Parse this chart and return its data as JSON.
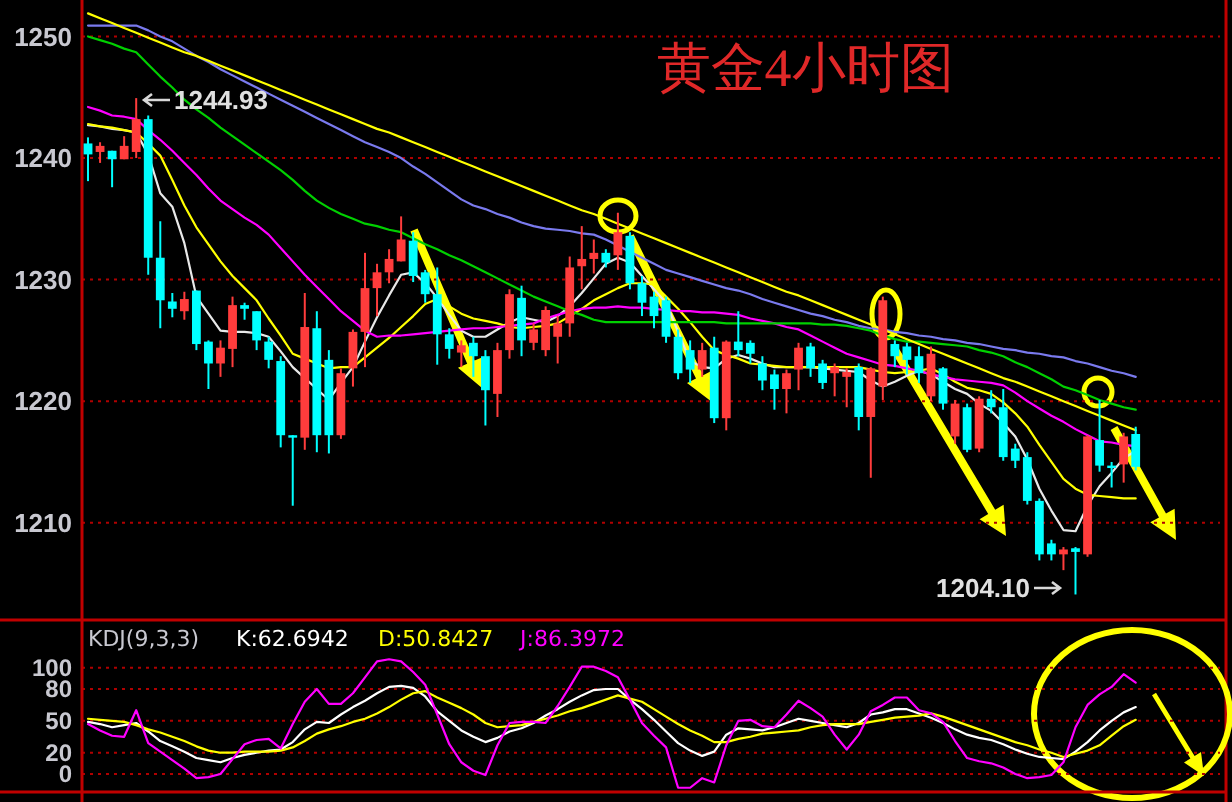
{
  "chart_data": [
    {
      "type": "candlestick",
      "title": "黄金4小时图",
      "categories": [
        null,
        null,
        null,
        null,
        null,
        null,
        null,
        null,
        null,
        null,
        null,
        null,
        null,
        null,
        null,
        null,
        null,
        null,
        null,
        null,
        null,
        null,
        null,
        null,
        null,
        null,
        null,
        null,
        null,
        null,
        null,
        null,
        null,
        null,
        null,
        null,
        null,
        null,
        null,
        null,
        null,
        null,
        null,
        null,
        null,
        null,
        null,
        null,
        null,
        null,
        null,
        null,
        null,
        null,
        null,
        null,
        null,
        null,
        null,
        null,
        null,
        null,
        null,
        null,
        null,
        null,
        null,
        null,
        null,
        null,
        null,
        null,
        null,
        null,
        null,
        null,
        null,
        null,
        null,
        null,
        null,
        null,
        null,
        null,
        null,
        null,
        null,
        null
      ],
      "ohlc": [
        [
          1241.2,
          1241.7,
          1238.1,
          1240.3
        ],
        [
          1240.5,
          1241.3,
          1239.6,
          1241.0
        ],
        [
          1240.6,
          1240.6,
          1237.6,
          1239.9
        ],
        [
          1239.9,
          1241.8,
          1239.9,
          1241.0
        ],
        [
          1240.5,
          1244.93,
          1240.0,
          1243.2
        ],
        [
          1243.2,
          1243.5,
          1230.4,
          1231.8
        ],
        [
          1231.8,
          1234.8,
          1226.0,
          1228.3
        ],
        [
          1228.2,
          1228.9,
          1226.9,
          1227.6
        ],
        [
          1227.4,
          1229.0,
          1226.7,
          1228.4
        ],
        [
          1229.1,
          1229.1,
          1224.2,
          1224.7
        ],
        [
          1224.9,
          1225.0,
          1221.0,
          1223.1
        ],
        [
          1223.1,
          1225.0,
          1222.0,
          1224.4
        ],
        [
          1224.3,
          1228.6,
          1222.8,
          1227.9
        ],
        [
          1227.9,
          1228.1,
          1226.7,
          1227.6
        ],
        [
          1227.4,
          1227.4,
          1224.2,
          1225.0
        ],
        [
          1224.9,
          1225.3,
          1222.7,
          1223.4
        ],
        [
          1223.3,
          1223.7,
          1216.2,
          1217.2
        ],
        [
          1217.2,
          1217.2,
          1211.4,
          1217.0
        ],
        [
          1217.0,
          1228.9,
          1216.0,
          1226.1
        ],
        [
          1226.0,
          1227.4,
          1215.8,
          1217.2
        ],
        [
          1223.4,
          1224.2,
          1215.7,
          1217.2
        ],
        [
          1217.2,
          1222.7,
          1216.9,
          1222.3
        ],
        [
          1222.7,
          1225.9,
          1221.2,
          1225.7
        ],
        [
          1225.7,
          1232.2,
          1222.8,
          1229.3
        ],
        [
          1229.3,
          1231.3,
          1227.0,
          1230.6
        ],
        [
          1230.6,
          1232.5,
          1229.7,
          1231.7
        ],
        [
          1231.5,
          1235.2,
          1231.5,
          1233.3
        ],
        [
          1233.2,
          1233.9,
          1229.8,
          1230.3
        ],
        [
          1230.6,
          1230.8,
          1228.1,
          1228.8
        ],
        [
          1228.8,
          1231.0,
          1223.0,
          1225.5
        ],
        [
          1225.5,
          1226.0,
          1223.5,
          1224.3
        ],
        [
          1224.0,
          1225.0,
          1222.8,
          1224.6
        ],
        [
          1224.8,
          1225.3,
          1222.0,
          1223.7
        ],
        [
          1223.7,
          1224.2,
          1218.0,
          1220.9
        ],
        [
          1220.6,
          1224.8,
          1218.7,
          1224.2
        ],
        [
          1224.2,
          1229.2,
          1223.5,
          1228.8
        ],
        [
          1228.5,
          1229.5,
          1223.7,
          1225.0
        ],
        [
          1224.8,
          1226.4,
          1224.2,
          1225.9
        ],
        [
          1224.2,
          1227.8,
          1223.7,
          1227.5
        ],
        [
          1225.3,
          1227.0,
          1223.1,
          1226.4
        ],
        [
          1226.4,
          1231.9,
          1225.3,
          1231.0
        ],
        [
          1231.1,
          1234.4,
          1229.2,
          1231.7
        ],
        [
          1231.7,
          1233.3,
          1230.5,
          1232.2
        ],
        [
          1232.2,
          1232.5,
          1231.0,
          1231.4
        ],
        [
          1232.0,
          1235.5,
          1230.8,
          1233.9
        ],
        [
          1233.6,
          1233.9,
          1229.2,
          1229.7
        ],
        [
          1229.7,
          1230.3,
          1227.0,
          1228.1
        ],
        [
          1228.6,
          1229.0,
          1226.0,
          1227.0
        ],
        [
          1228.3,
          1228.6,
          1224.8,
          1225.3
        ],
        [
          1225.3,
          1225.9,
          1221.8,
          1222.3
        ],
        [
          1224.2,
          1225.0,
          1221.5,
          1222.6
        ],
        [
          1222.6,
          1224.8,
          1222.0,
          1224.2
        ],
        [
          1224.4,
          1225.3,
          1218.2,
          1218.6
        ],
        [
          1218.6,
          1225.0,
          1217.6,
          1224.9
        ],
        [
          1224.9,
          1227.4,
          1223.7,
          1224.2
        ],
        [
          1224.8,
          1225.0,
          1223.1,
          1223.9
        ],
        [
          1223.1,
          1223.7,
          1220.9,
          1221.7
        ],
        [
          1222.2,
          1222.6,
          1219.3,
          1221.0
        ],
        [
          1221.0,
          1222.6,
          1219.0,
          1222.3
        ],
        [
          1222.6,
          1224.8,
          1220.9,
          1224.4
        ],
        [
          1224.5,
          1224.8,
          1222.0,
          1222.7
        ],
        [
          1223.1,
          1223.4,
          1221.0,
          1221.5
        ],
        [
          1222.3,
          1223.1,
          1220.4,
          1222.8
        ],
        [
          1222.0,
          1222.7,
          1219.5,
          1222.4
        ],
        [
          1222.8,
          1223.1,
          1217.6,
          1218.7
        ],
        [
          1218.7,
          1222.8,
          1213.7,
          1222.7
        ],
        [
          1221.2,
          1228.6,
          1220.1,
          1228.3
        ],
        [
          1224.7,
          1225.0,
          1222.8,
          1223.7
        ],
        [
          1224.5,
          1224.8,
          1222.2,
          1223.4
        ],
        [
          1223.7,
          1224.5,
          1221.5,
          1222.3
        ],
        [
          1220.4,
          1224.5,
          1220.0,
          1223.9
        ],
        [
          1222.7,
          1222.8,
          1219.3,
          1219.8
        ],
        [
          1217.1,
          1220.1,
          1216.5,
          1219.8
        ],
        [
          1219.5,
          1219.8,
          1215.8,
          1216.0
        ],
        [
          1216.1,
          1220.4,
          1215.8,
          1220.2
        ],
        [
          1220.2,
          1220.9,
          1219.0,
          1219.5
        ],
        [
          1219.5,
          1221.0,
          1215.1,
          1215.4
        ],
        [
          1216.1,
          1216.5,
          1214.5,
          1215.1
        ],
        [
          1215.4,
          1215.8,
          1211.5,
          1211.8
        ],
        [
          1211.8,
          1212.0,
          1206.9,
          1207.4
        ],
        [
          1208.3,
          1208.6,
          1206.9,
          1207.4
        ],
        [
          1207.4,
          1208.0,
          1206.1,
          1207.8
        ],
        [
          1207.9,
          1208.0,
          1204.1,
          1207.6
        ],
        [
          1207.4,
          1217.2,
          1207.2,
          1217.1
        ],
        [
          1216.8,
          1220.1,
          1214.2,
          1214.7
        ],
        [
          1214.7,
          1215.0,
          1212.9,
          1214.5
        ],
        [
          1214.8,
          1217.4,
          1213.3,
          1217.1
        ],
        [
          1217.3,
          1217.9,
          1214.3,
          1214.6
        ]
      ],
      "series": [
        {
          "type": "line",
          "color": "#e8e8e8",
          "values": [
            1242.7,
            1242.6,
            1242.4,
            1242.3,
            1242.1,
            1240.3,
            1237.1,
            1236.0,
            1233.0,
            1228.6,
            1227.2,
            1225.8,
            1225.7,
            1225.7,
            1225.6,
            1225.3,
            1224.1,
            1222.8,
            1221.9,
            1221.0,
            1220.1,
            1221.5,
            1222.8,
            1224.9,
            1226.9,
            1228.7,
            1230.4,
            1230.6,
            1229.7,
            1228.5,
            1227.1,
            1225.8,
            1225.3,
            1225.3,
            1225.9,
            1226.5,
            1226.9,
            1226.7,
            1226.5,
            1227.0,
            1227.8,
            1228.9,
            1230.1,
            1231.3,
            1231.8,
            1231.4,
            1230.3,
            1229.2,
            1228.1,
            1225.7,
            1223.3,
            1222.8,
            1222.7,
            1223.5,
            1223.8,
            1223.5,
            1223.1,
            1222.8,
            1222.8,
            1222.8,
            1222.8,
            1222.7,
            1222.6,
            1222.5,
            1222.4,
            1221.7,
            1221.2,
            1221.6,
            1222.1,
            1222.5,
            1222.2,
            1221.6,
            1221.0,
            1220.6,
            1219.8,
            1219.2,
            1218.2,
            1217.1,
            1215.2,
            1212.8,
            1211.0,
            1209.4,
            1209.3,
            1211.4,
            1213.0,
            1214.1,
            1215.3,
            1215.9
          ]
        },
        {
          "type": "line",
          "color": "#ffff00",
          "values": [
            1242.8,
            1242.6,
            1242.5,
            1242.3,
            1242.1,
            1241.2,
            1240.2,
            1238.2,
            1236.1,
            1234.3,
            1232.9,
            1231.5,
            1230.3,
            1229.3,
            1228.3,
            1226.8,
            1225.4,
            1223.9,
            1223.5,
            1223.1,
            1222.7,
            1222.8,
            1222.8,
            1223.6,
            1224.4,
            1225.2,
            1226.1,
            1227.0,
            1228.0,
            1228.4,
            1227.8,
            1227.2,
            1226.8,
            1226.6,
            1226.4,
            1226.1,
            1226.0,
            1226.1,
            1226.2,
            1226.4,
            1227.0,
            1227.6,
            1228.3,
            1228.8,
            1229.3,
            1229.7,
            1229.7,
            1229.6,
            1228.6,
            1227.6,
            1226.5,
            1225.3,
            1224.2,
            1223.8,
            1223.5,
            1223.1,
            1223.0,
            1222.9,
            1222.8,
            1222.8,
            1222.8,
            1222.8,
            1222.8,
            1222.8,
            1222.8,
            1222.6,
            1222.4,
            1222.3,
            1222.4,
            1222.5,
            1222.7,
            1222.2,
            1221.6,
            1221.1,
            1220.9,
            1220.6,
            1219.9,
            1219.0,
            1217.9,
            1216.4,
            1215.0,
            1213.6,
            1212.8,
            1212.3,
            1212.2,
            1212.1,
            1212.0,
            1212.0
          ]
        },
        {
          "type": "line",
          "color": "#ff00ff",
          "values": [
            1244.2,
            1243.9,
            1243.5,
            1243.4,
            1243.2,
            1242.3,
            1241.5,
            1240.6,
            1239.6,
            1238.6,
            1237.5,
            1236.5,
            1235.8,
            1235.1,
            1234.5,
            1233.7,
            1232.6,
            1231.5,
            1230.4,
            1229.4,
            1228.4,
            1227.4,
            1226.6,
            1225.8,
            1225.3,
            1225.4,
            1225.4,
            1225.5,
            1225.6,
            1225.7,
            1225.8,
            1225.9,
            1226.0,
            1226.0,
            1226.1,
            1226.2,
            1226.3,
            1226.4,
            1226.8,
            1227.1,
            1227.4,
            1227.6,
            1227.7,
            1227.7,
            1227.8,
            1227.7,
            1227.7,
            1227.6,
            1227.5,
            1227.4,
            1227.4,
            1227.3,
            1227.3,
            1227.2,
            1227.1,
            1226.8,
            1226.6,
            1226.4,
            1226.1,
            1225.9,
            1225.4,
            1224.9,
            1224.4,
            1223.9,
            1223.6,
            1223.3,
            1223.0,
            1222.9,
            1222.7,
            1222.5,
            1222.2,
            1222.0,
            1221.8,
            1221.7,
            1221.6,
            1221.5,
            1221.3,
            1220.7,
            1220.0,
            1219.4,
            1218.8,
            1218.3,
            1217.7,
            1217.2,
            1216.7,
            1216.6,
            1216.4,
            1216.3
          ]
        },
        {
          "type": "line",
          "color": "#00d000",
          "values": [
            1250.0,
            1249.7,
            1249.4,
            1249.0,
            1248.7,
            1247.7,
            1246.7,
            1245.8,
            1244.8,
            1244.0,
            1243.3,
            1242.5,
            1241.8,
            1241.1,
            1240.4,
            1239.7,
            1239.0,
            1238.2,
            1237.3,
            1236.5,
            1235.9,
            1235.4,
            1235.0,
            1234.6,
            1234.4,
            1234.1,
            1233.9,
            1233.4,
            1232.9,
            1232.5,
            1232.0,
            1231.6,
            1231.1,
            1230.6,
            1230.1,
            1229.6,
            1229.1,
            1228.6,
            1228.2,
            1227.8,
            1227.4,
            1227.1,
            1226.7,
            1226.5,
            1226.5,
            1226.5,
            1226.5,
            1226.5,
            1226.5,
            1226.5,
            1226.5,
            1226.5,
            1226.5,
            1226.4,
            1226.4,
            1226.4,
            1226.4,
            1226.4,
            1226.4,
            1226.4,
            1226.4,
            1226.3,
            1226.3,
            1226.2,
            1226.0,
            1225.8,
            1225.4,
            1225.1,
            1224.9,
            1224.9,
            1224.8,
            1224.7,
            1224.6,
            1224.5,
            1224.2,
            1224.0,
            1223.7,
            1223.2,
            1222.8,
            1222.3,
            1221.8,
            1221.2,
            1220.9,
            1220.5,
            1220.1,
            1219.8,
            1219.5,
            1219.3
          ]
        },
        {
          "type": "line",
          "color": "#7a7aee",
          "values": [
            1250.9,
            1250.9,
            1250.9,
            1250.9,
            1250.9,
            1250.5,
            1250.0,
            1249.6,
            1249.0,
            1248.4,
            1247.9,
            1247.3,
            1246.8,
            1246.3,
            1245.8,
            1245.3,
            1244.8,
            1244.3,
            1243.8,
            1243.3,
            1242.8,
            1242.3,
            1241.8,
            1241.3,
            1240.9,
            1240.5,
            1240.0,
            1239.3,
            1238.7,
            1238.0,
            1237.3,
            1236.6,
            1236.1,
            1235.8,
            1235.4,
            1235.1,
            1234.7,
            1234.4,
            1234.2,
            1234.1,
            1234.0,
            1233.8,
            1233.7,
            1233.3,
            1232.8,
            1232.3,
            1231.8,
            1231.3,
            1230.8,
            1230.5,
            1230.2,
            1229.9,
            1229.6,
            1229.3,
            1229.1,
            1228.8,
            1228.4,
            1228.1,
            1227.8,
            1227.5,
            1227.2,
            1227.0,
            1226.7,
            1226.5,
            1226.2,
            1226.0,
            1225.9,
            1225.7,
            1225.6,
            1225.4,
            1225.3,
            1225.1,
            1225.0,
            1224.8,
            1224.7,
            1224.5,
            1224.3,
            1224.2,
            1224.0,
            1223.9,
            1223.7,
            1223.6,
            1223.3,
            1223.1,
            1222.8,
            1222.5,
            1222.3,
            1222.0
          ]
        },
        {
          "type": "line",
          "color": "#ffff00",
          "values": [
            1251.9,
            1251.5,
            1251.1,
            1250.7,
            1250.3,
            1249.9,
            1249.5,
            1249.1,
            1248.7,
            1248.4,
            1248.0,
            1247.6,
            1247.2,
            1246.8,
            1246.4,
            1246.0,
            1245.6,
            1245.2,
            1244.8,
            1244.4,
            1244.0,
            1243.6,
            1243.2,
            1242.8,
            1242.4,
            1242.1,
            1241.7,
            1241.3,
            1240.9,
            1240.5,
            1240.1,
            1239.7,
            1239.3,
            1238.9,
            1238.5,
            1238.1,
            1237.7,
            1237.3,
            1236.9,
            1236.5,
            1236.1,
            1235.7,
            1235.4,
            1235.0,
            1234.6,
            1234.2,
            1233.8,
            1233.4,
            1233.0,
            1232.6,
            1232.2,
            1231.8,
            1231.4,
            1231.0,
            1230.6,
            1230.2,
            1229.8,
            1229.4,
            1229.0,
            1228.7,
            1228.3,
            1227.9,
            1227.5,
            1227.1,
            1226.7,
            1226.3,
            1225.9,
            1225.5,
            1225.1,
            1224.7,
            1224.3,
            1223.9,
            1223.5,
            1223.1,
            1222.7,
            1222.3,
            1221.9,
            1221.6,
            1221.2,
            1220.8,
            1220.4,
            1220.0,
            1219.6,
            1219.2,
            1218.8,
            1218.4,
            1218.0,
            1217.6
          ]
        }
      ],
      "ylim": [
        1202,
        1253
      ],
      "yticks": [
        1210,
        1220,
        1230,
        1240,
        1250
      ],
      "grid": "y",
      "tick_labels": "y",
      "annotations": [
        "1244.93",
        "1204.10"
      ]
    },
    {
      "type": "line",
      "title": "KDJ(9,3,3)",
      "categories": [
        null,
        null,
        null,
        null,
        null,
        null,
        null,
        null,
        null,
        null,
        null,
        null,
        null,
        null,
        null,
        null,
        null,
        null,
        null,
        null,
        null,
        null,
        null,
        null,
        null,
        null,
        null,
        null,
        null,
        null,
        null,
        null,
        null,
        null,
        null,
        null,
        null,
        null,
        null,
        null,
        null,
        null,
        null,
        null,
        null,
        null,
        null,
        null,
        null,
        null,
        null,
        null,
        null,
        null,
        null,
        null,
        null,
        null,
        null,
        null,
        null,
        null,
        null,
        null,
        null,
        null,
        null,
        null,
        null,
        null,
        null,
        null,
        null,
        null,
        null,
        null,
        null,
        null,
        null,
        null,
        null,
        null,
        null,
        null,
        null,
        null,
        null,
        null
      ],
      "series": [
        {
          "name": "K:62.6942",
          "color": "#ffffff",
          "values": [
            49,
            47,
            44,
            46,
            48,
            40,
            31,
            26,
            21,
            15,
            13,
            11,
            15,
            18,
            20,
            22,
            23,
            30,
            42,
            49,
            48,
            56,
            63,
            69,
            76,
            82,
            83,
            81,
            73,
            59,
            50,
            41,
            35,
            30,
            34,
            40,
            43,
            48,
            55,
            61,
            68,
            74,
            79,
            80,
            80,
            70,
            61,
            51,
            40,
            29,
            22,
            17,
            21,
            37,
            43,
            42,
            41,
            44,
            48,
            52,
            50,
            48,
            46,
            44,
            48,
            56,
            58,
            61,
            61,
            57,
            53,
            48,
            42,
            37,
            34,
            32,
            28,
            23,
            19,
            16,
            15,
            14,
            21,
            30,
            41,
            50,
            58,
            63
          ]
        },
        {
          "name": "D:50.8427",
          "color": "#ffff00",
          "values": [
            52,
            51,
            50,
            49,
            46,
            42,
            39,
            35,
            31,
            26,
            22,
            20,
            20,
            21,
            21,
            21,
            22,
            25,
            31,
            38,
            42,
            45,
            49,
            52,
            57,
            63,
            70,
            76,
            78,
            72,
            67,
            62,
            56,
            48,
            44,
            45,
            46,
            49,
            52,
            55,
            59,
            62,
            66,
            70,
            74,
            71,
            68,
            61,
            54,
            47,
            41,
            36,
            30,
            30,
            33,
            35,
            38,
            39,
            40,
            41,
            44,
            46,
            47,
            47,
            47,
            49,
            51,
            53,
            54,
            55,
            57,
            54,
            50,
            46,
            42,
            38,
            34,
            30,
            27,
            23,
            20,
            16,
            19,
            22,
            27,
            36,
            45,
            51
          ]
        },
        {
          "name": "J:86.3972",
          "color": "#ff00ff",
          "values": [
            47,
            41,
            36,
            35,
            60,
            29,
            21,
            13,
            5,
            -4,
            -3,
            0,
            14,
            28,
            32,
            33,
            24,
            47,
            68,
            80,
            66,
            66,
            76,
            91,
            106,
            108,
            106,
            96,
            84,
            56,
            28,
            11,
            3,
            -1,
            27,
            48,
            49,
            49,
            48,
            64,
            82,
            101,
            101,
            97,
            91,
            70,
            48,
            36,
            25,
            -13,
            -13,
            -4,
            -8,
            27,
            50,
            51,
            45,
            44,
            56,
            69,
            62,
            54,
            37,
            23,
            37,
            59,
            65,
            72,
            72,
            60,
            57,
            49,
            31,
            15,
            12,
            10,
            6,
            0,
            -4,
            -3,
            -1,
            11,
            44,
            65,
            75,
            82,
            94,
            86
          ]
        }
      ],
      "ylim": [
        -17,
        145
      ],
      "yticks": [
        0,
        20,
        50,
        80,
        100
      ],
      "grid": "y",
      "tick_labels": "y"
    }
  ]
}
